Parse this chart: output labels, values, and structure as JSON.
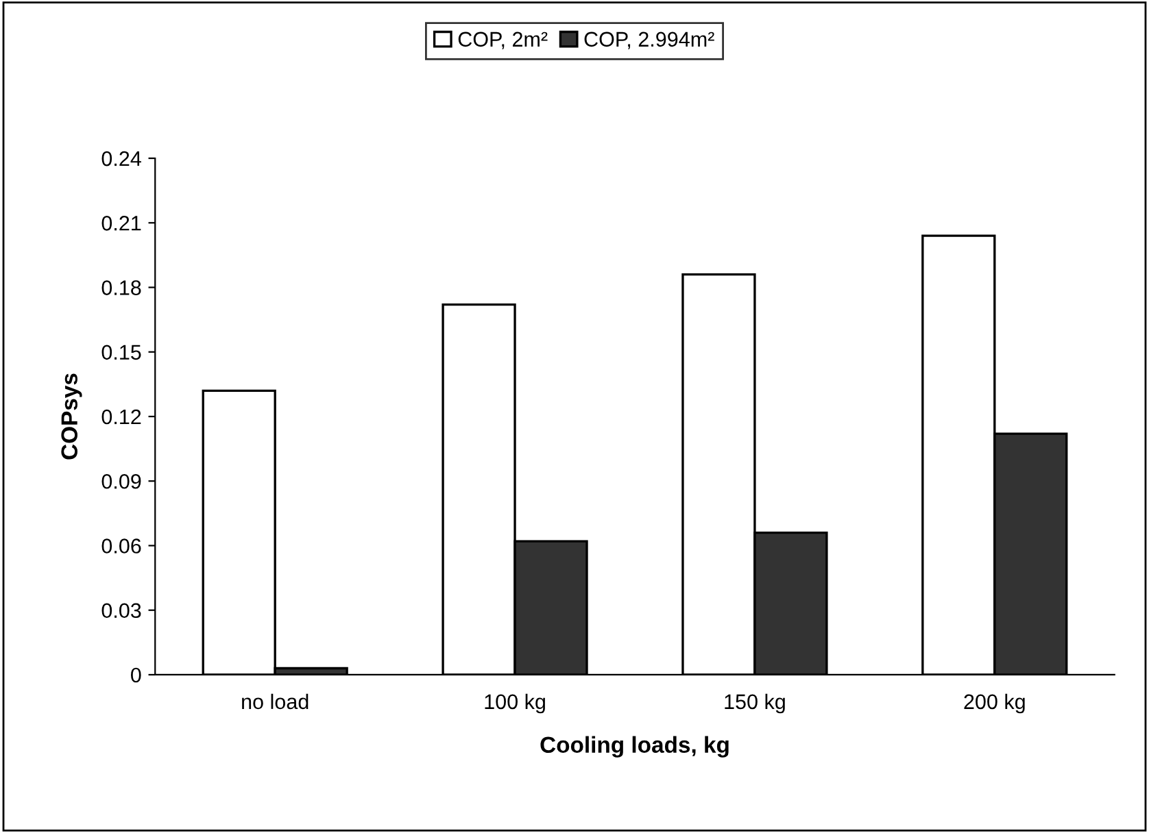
{
  "chart_data": {
    "type": "bar",
    "xlabel": "Cooling loads, kg",
    "ylabel": "COPsys",
    "categories": [
      "no load",
      "100 kg",
      "150 kg",
      "200 kg"
    ],
    "series": [
      {
        "name": "COP, 2m²",
        "color": "#ffffff",
        "values": [
          0.132,
          0.172,
          0.186,
          0.204
        ]
      },
      {
        "name": "COP, 2.994m²",
        "color": "#333333",
        "values": [
          0.003,
          0.062,
          0.066,
          0.112
        ]
      }
    ],
    "ylim": [
      0,
      0.24
    ],
    "yticks": [
      0,
      0.03,
      0.06,
      0.09,
      0.12,
      0.15,
      0.18,
      0.21,
      0.24
    ],
    "grid": false,
    "legend": "top"
  }
}
